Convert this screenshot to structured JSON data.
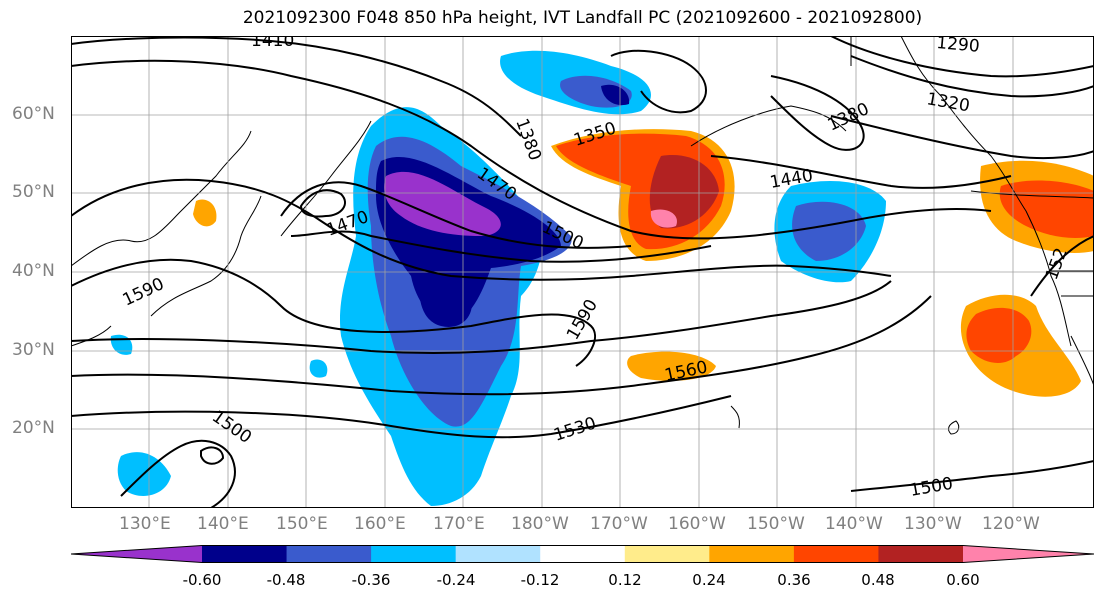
{
  "title": "2021092300 F048 850 hPa height, IVT Landfall PC (2021092600 - 2021092800)",
  "lat_labels": [
    "60°N",
    "50°N",
    "40°N",
    "30°N",
    "20°N"
  ],
  "lon_labels": [
    "130°E",
    "140°E",
    "150°E",
    "160°E",
    "170°E",
    "180°W",
    "170°W",
    "160°W",
    "150°W",
    "140°W",
    "130°W",
    "120°W"
  ],
  "contour_labels": {
    "c1410": "1410",
    "c1380": "1380",
    "c1350": "1350",
    "c1470a": "1470",
    "c1470b": "1470",
    "c1500a": "1500",
    "c1290": "1290",
    "c1320": "1320",
    "c1380b": "1380",
    "c1440": "1440",
    "c1590a": "1590",
    "c1590b": "1590",
    "c1560": "1560",
    "c1530": "1530",
    "c1500b": "1500",
    "c1500c": "1500",
    "c1520": "152"
  },
  "colorbar": {
    "labels": [
      "-0.60",
      "-0.48",
      "-0.36",
      "-0.24",
      "-0.12",
      "0.12",
      "0.24",
      "0.36",
      "0.48",
      "0.60"
    ],
    "colors": [
      "#9932CC",
      "#00008B",
      "#3A5BCD",
      "#00BFFF",
      "#B0E2FF",
      "#FFFFFF",
      "#FFEC8B",
      "#FFA500",
      "#FF4500",
      "#B22222",
      "#FF82AB"
    ]
  },
  "colors": {
    "purple": "#9932CC",
    "navy": "#00008B",
    "royal": "#3A5BCD",
    "sky": "#00BFFF",
    "light_sky": "#B0E2FF",
    "yellow": "#FFEC8B",
    "orange": "#FFA500",
    "red_orange": "#FF4500",
    "firebrick": "#B22222",
    "pink": "#FF82AB"
  }
}
